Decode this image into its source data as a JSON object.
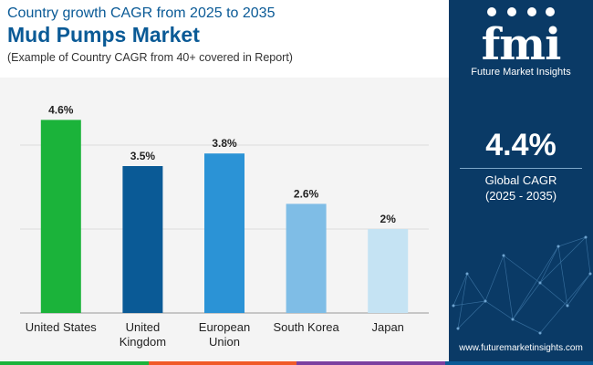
{
  "header": {
    "subtitle": "Country growth CAGR from 2025 to 2035",
    "title": "Mud Pumps Market",
    "note": "(Example of Country CAGR from 40+ covered in Report)"
  },
  "chart_data": {
    "type": "bar",
    "categories": [
      [
        "United States"
      ],
      [
        "United",
        "Kingdom"
      ],
      [
        "European",
        "Union"
      ],
      [
        "South Korea"
      ],
      [
        "Japan"
      ]
    ],
    "values": [
      4.6,
      3.5,
      3.8,
      2.6,
      2.0
    ],
    "labels": [
      "4.6%",
      "3.5%",
      "3.8%",
      "2.6%",
      "2%"
    ],
    "colors": [
      "#1bb33a",
      "#0a5a96",
      "#2b93d6",
      "#7fbde6",
      "#c5e3f3"
    ],
    "ylim": [
      0,
      5
    ],
    "grid": true,
    "title": "",
    "xlabel": "",
    "ylabel": ""
  },
  "panel": {
    "logo_mark": "fmi",
    "logo_text": "Future Market Insights",
    "value": "4.4%",
    "label": "Global CAGR",
    "period": "(2025 - 2035)",
    "url": "www.futuremarketinsights.com"
  },
  "bottom_bar_colors": [
    "#1bb33a",
    "#f05a28",
    "#7b3fa0",
    "#0a5a96"
  ]
}
